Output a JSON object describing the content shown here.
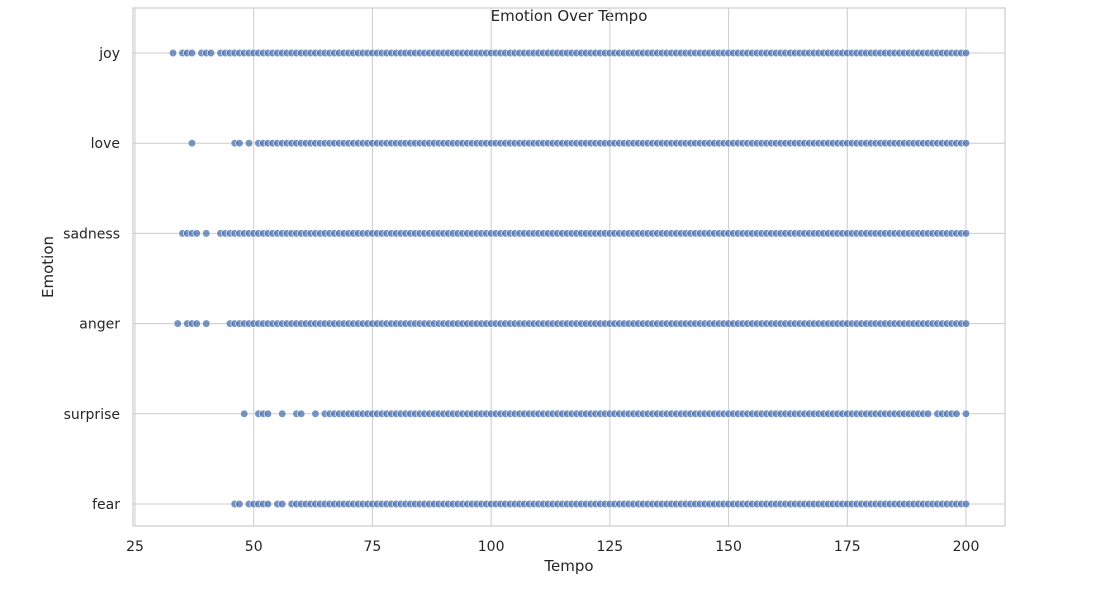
{
  "chart_data": {
    "type": "scatter",
    "title": "Emotion Over Tempo",
    "xlabel": "Tempo",
    "ylabel": "Emotion",
    "xlim": [
      25,
      208
    ],
    "xticks": [
      25,
      50,
      75,
      100,
      125,
      150,
      175,
      200
    ],
    "categories": [
      "joy",
      "love",
      "sadness",
      "anger",
      "surprise",
      "fear"
    ],
    "grid": true,
    "marker_color": "#4c72b0",
    "series": [
      {
        "category": "joy",
        "x": [
          33,
          35,
          36,
          37,
          39,
          40,
          41,
          43,
          44,
          45,
          46,
          47,
          48,
          49,
          50,
          51,
          52,
          53,
          54,
          55,
          56,
          57,
          58,
          59,
          60,
          61,
          62,
          63,
          64,
          65,
          66,
          67,
          68,
          69,
          70,
          71,
          72,
          73,
          74,
          75,
          76,
          77,
          78,
          79,
          80,
          81,
          82,
          83,
          84,
          85,
          86,
          87,
          88,
          89,
          90,
          91,
          92,
          93,
          94,
          95,
          96,
          97,
          98,
          99,
          100,
          101,
          102,
          103,
          104,
          105,
          106,
          107,
          108,
          109,
          110,
          111,
          112,
          113,
          114,
          115,
          116,
          117,
          118,
          119,
          120,
          121,
          122,
          123,
          124,
          125,
          126,
          127,
          128,
          129,
          130,
          131,
          132,
          133,
          134,
          135,
          136,
          137,
          138,
          139,
          140,
          141,
          142,
          143,
          144,
          145,
          146,
          147,
          148,
          149,
          150,
          151,
          152,
          153,
          154,
          155,
          156,
          157,
          158,
          159,
          160,
          161,
          162,
          163,
          164,
          165,
          166,
          167,
          168,
          169,
          170,
          171,
          172,
          173,
          174,
          175,
          176,
          177,
          178,
          179,
          180,
          181,
          182,
          183,
          184,
          185,
          186,
          187,
          188,
          189,
          190,
          191,
          192,
          193,
          194,
          195,
          196,
          197,
          198,
          199,
          200
        ]
      },
      {
        "category": "love",
        "x": [
          37,
          46,
          47,
          49,
          51,
          52,
          53,
          54,
          55,
          56,
          57,
          58,
          59,
          60,
          61,
          62,
          63,
          64,
          65,
          66,
          67,
          68,
          69,
          70,
          71,
          72,
          73,
          74,
          75,
          76,
          77,
          78,
          79,
          80,
          81,
          82,
          83,
          84,
          85,
          86,
          87,
          88,
          89,
          90,
          91,
          92,
          93,
          94,
          95,
          96,
          97,
          98,
          99,
          100,
          101,
          102,
          103,
          104,
          105,
          106,
          107,
          108,
          109,
          110,
          111,
          112,
          113,
          114,
          115,
          116,
          117,
          118,
          119,
          120,
          121,
          122,
          123,
          124,
          125,
          126,
          127,
          128,
          129,
          130,
          131,
          132,
          133,
          134,
          135,
          136,
          137,
          138,
          139,
          140,
          141,
          142,
          143,
          144,
          145,
          146,
          147,
          148,
          149,
          150,
          151,
          152,
          153,
          154,
          155,
          156,
          157,
          158,
          159,
          160,
          161,
          162,
          163,
          164,
          165,
          166,
          167,
          168,
          169,
          170,
          171,
          172,
          173,
          174,
          175,
          176,
          177,
          178,
          179,
          180,
          181,
          182,
          183,
          184,
          185,
          186,
          187,
          188,
          189,
          190,
          191,
          192,
          193,
          194,
          195,
          196,
          197,
          198,
          199,
          200
        ]
      },
      {
        "category": "sadness",
        "x": [
          35,
          36,
          37,
          38,
          40,
          43,
          44,
          45,
          46,
          47,
          48,
          49,
          50,
          51,
          52,
          53,
          54,
          55,
          56,
          57,
          58,
          59,
          60,
          61,
          62,
          63,
          64,
          65,
          66,
          67,
          68,
          69,
          70,
          71,
          72,
          73,
          74,
          75,
          76,
          77,
          78,
          79,
          80,
          81,
          82,
          83,
          84,
          85,
          86,
          87,
          88,
          89,
          90,
          91,
          92,
          93,
          94,
          95,
          96,
          97,
          98,
          99,
          100,
          101,
          102,
          103,
          104,
          105,
          106,
          107,
          108,
          109,
          110,
          111,
          112,
          113,
          114,
          115,
          116,
          117,
          118,
          119,
          120,
          121,
          122,
          123,
          124,
          125,
          126,
          127,
          128,
          129,
          130,
          131,
          132,
          133,
          134,
          135,
          136,
          137,
          138,
          139,
          140,
          141,
          142,
          143,
          144,
          145,
          146,
          147,
          148,
          149,
          150,
          151,
          152,
          153,
          154,
          155,
          156,
          157,
          158,
          159,
          160,
          161,
          162,
          163,
          164,
          165,
          166,
          167,
          168,
          169,
          170,
          171,
          172,
          173,
          174,
          175,
          176,
          177,
          178,
          179,
          180,
          181,
          182,
          183,
          184,
          185,
          186,
          187,
          188,
          189,
          190,
          191,
          192,
          193,
          194,
          195,
          196,
          197,
          198,
          199,
          200
        ]
      },
      {
        "category": "anger",
        "x": [
          34,
          36,
          37,
          38,
          40,
          45,
          46,
          47,
          48,
          49,
          50,
          51,
          52,
          53,
          54,
          55,
          56,
          57,
          58,
          59,
          60,
          61,
          62,
          63,
          64,
          65,
          66,
          67,
          68,
          69,
          70,
          71,
          72,
          73,
          74,
          75,
          76,
          77,
          78,
          79,
          80,
          81,
          82,
          83,
          84,
          85,
          86,
          87,
          88,
          89,
          90,
          91,
          92,
          93,
          94,
          95,
          96,
          97,
          98,
          99,
          100,
          101,
          102,
          103,
          104,
          105,
          106,
          107,
          108,
          109,
          110,
          111,
          112,
          113,
          114,
          115,
          116,
          117,
          118,
          119,
          120,
          121,
          122,
          123,
          124,
          125,
          126,
          127,
          128,
          129,
          130,
          131,
          132,
          133,
          134,
          135,
          136,
          137,
          138,
          139,
          140,
          141,
          142,
          143,
          144,
          145,
          146,
          147,
          148,
          149,
          150,
          151,
          152,
          153,
          154,
          155,
          156,
          157,
          158,
          159,
          160,
          161,
          162,
          163,
          164,
          165,
          166,
          167,
          168,
          169,
          170,
          171,
          172,
          173,
          174,
          175,
          176,
          177,
          178,
          179,
          180,
          181,
          182,
          183,
          184,
          185,
          186,
          187,
          188,
          189,
          190,
          191,
          192,
          193,
          194,
          195,
          196,
          197,
          198,
          199,
          200
        ]
      },
      {
        "category": "surprise",
        "x": [
          48,
          51,
          52,
          53,
          56,
          59,
          60,
          63,
          65,
          66,
          67,
          68,
          69,
          70,
          71,
          72,
          73,
          74,
          75,
          76,
          77,
          78,
          79,
          80,
          81,
          82,
          83,
          84,
          85,
          86,
          87,
          88,
          89,
          90,
          91,
          92,
          93,
          94,
          95,
          96,
          97,
          98,
          99,
          100,
          101,
          102,
          103,
          104,
          105,
          106,
          107,
          108,
          109,
          110,
          111,
          112,
          113,
          114,
          115,
          116,
          117,
          118,
          119,
          120,
          121,
          122,
          123,
          124,
          125,
          126,
          127,
          128,
          129,
          130,
          131,
          132,
          133,
          134,
          135,
          136,
          137,
          138,
          139,
          140,
          141,
          142,
          143,
          144,
          145,
          146,
          147,
          148,
          149,
          150,
          151,
          152,
          153,
          154,
          155,
          156,
          157,
          158,
          159,
          160,
          161,
          162,
          163,
          164,
          165,
          166,
          167,
          168,
          169,
          170,
          171,
          172,
          173,
          174,
          175,
          176,
          177,
          178,
          179,
          180,
          181,
          182,
          183,
          184,
          185,
          186,
          187,
          188,
          189,
          190,
          191,
          192,
          194,
          195,
          196,
          197,
          198,
          200
        ]
      },
      {
        "category": "fear",
        "x": [
          46,
          47,
          49,
          50,
          51,
          52,
          53,
          55,
          56,
          58,
          59,
          60,
          61,
          62,
          63,
          64,
          65,
          66,
          67,
          68,
          69,
          70,
          71,
          72,
          73,
          74,
          75,
          76,
          77,
          78,
          79,
          80,
          81,
          82,
          83,
          84,
          85,
          86,
          87,
          88,
          89,
          90,
          91,
          92,
          93,
          94,
          95,
          96,
          97,
          98,
          99,
          100,
          101,
          102,
          103,
          104,
          105,
          106,
          107,
          108,
          109,
          110,
          111,
          112,
          113,
          114,
          115,
          116,
          117,
          118,
          119,
          120,
          121,
          122,
          123,
          124,
          125,
          126,
          127,
          128,
          129,
          130,
          131,
          132,
          133,
          134,
          135,
          136,
          137,
          138,
          139,
          140,
          141,
          142,
          143,
          144,
          145,
          146,
          147,
          148,
          149,
          150,
          151,
          152,
          153,
          154,
          155,
          156,
          157,
          158,
          159,
          160,
          161,
          162,
          163,
          164,
          165,
          166,
          167,
          168,
          169,
          170,
          171,
          172,
          173,
          174,
          175,
          176,
          177,
          178,
          179,
          180,
          181,
          182,
          183,
          184,
          185,
          186,
          187,
          188,
          189,
          190,
          191,
          192,
          193,
          194,
          195,
          196,
          197,
          198,
          199,
          200
        ]
      }
    ]
  }
}
